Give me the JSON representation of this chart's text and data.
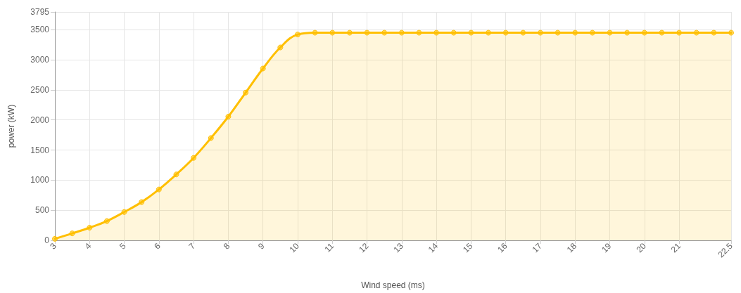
{
  "chart_data": {
    "type": "area",
    "xlabel": "Wind speed (ms)",
    "ylabel": "power (kW)",
    "x": [
      3,
      3.5,
      4,
      4.5,
      5,
      5.5,
      6,
      6.5,
      7,
      7.5,
      8,
      8.5,
      9,
      9.5,
      10,
      10.5,
      11,
      11.5,
      12,
      12.5,
      13,
      13.5,
      14,
      14.5,
      15,
      15.5,
      16,
      16.5,
      17,
      17.5,
      18,
      18.5,
      19,
      19.5,
      20,
      20.5,
      21,
      21.5,
      22,
      22.5
    ],
    "series": [
      {
        "color": "#ffbf00",
        "values": [
          25,
          115,
          210,
          320,
          470,
          635,
          845,
          1095,
          1370,
          1700,
          2055,
          2455,
          2855,
          3205,
          3420,
          3450,
          3450,
          3450,
          3450,
          3450,
          3450,
          3450,
          3450,
          3450,
          3450,
          3450,
          3450,
          3450,
          3450,
          3450,
          3450,
          3450,
          3450,
          3450,
          3450,
          3450,
          3450,
          3450,
          3450,
          3450
        ]
      }
    ],
    "xlim": [
      3,
      22.5
    ],
    "xticks": [
      3,
      4,
      5,
      6,
      7,
      8,
      9,
      10,
      11,
      12,
      13,
      14,
      15,
      16,
      17,
      18,
      19,
      20,
      21,
      22.5
    ],
    "ylim": [
      0,
      3795
    ],
    "yticks": [
      0,
      500,
      1000,
      1500,
      2000,
      2500,
      3000,
      3500,
      3795
    ],
    "grid": true,
    "marker": "circle",
    "line_style": "solid"
  }
}
